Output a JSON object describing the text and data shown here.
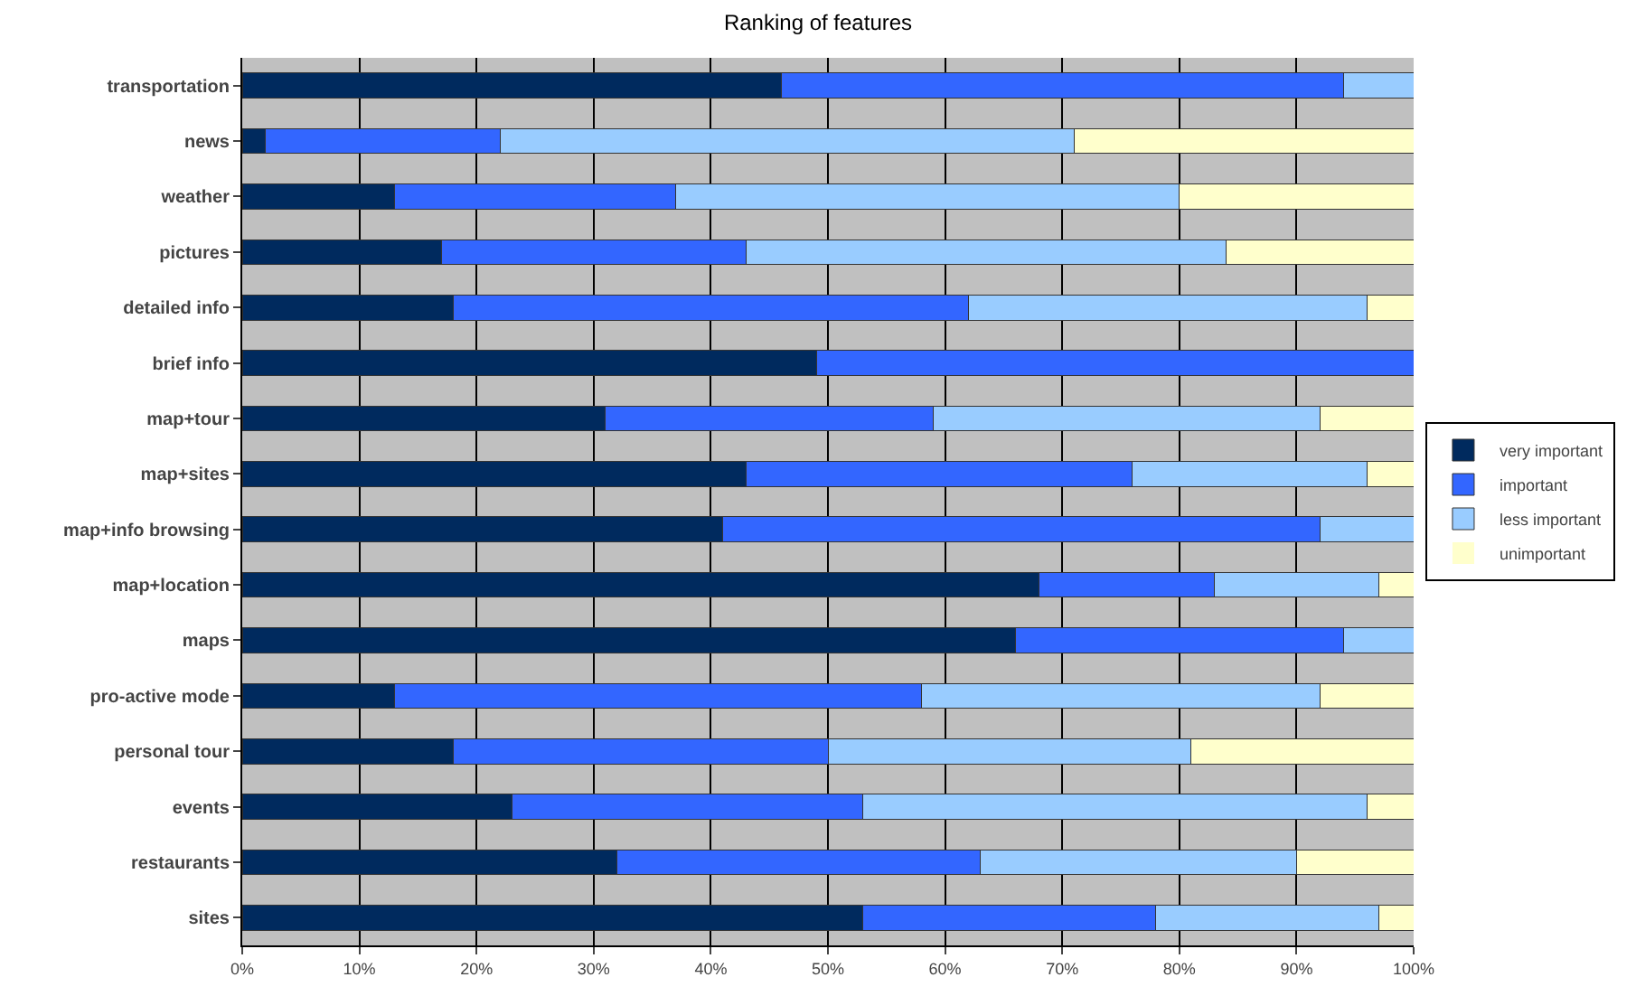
{
  "chart_data": {
    "type": "bar",
    "orientation": "horizontal",
    "stacked": true,
    "title": "Ranking of features",
    "categories": [
      "transportation",
      "news",
      "weather",
      "pictures",
      "detailed info",
      "brief info",
      "map+tour",
      "map+sites",
      "map+info browsing",
      "map+location",
      "maps",
      "pro-active mode",
      "personal tour",
      "events",
      "restaurants",
      "sites"
    ],
    "series": [
      {
        "name": "very important",
        "color": "#002a5e",
        "values": [
          46,
          2,
          13,
          17,
          18,
          49,
          31,
          43,
          41,
          68,
          66,
          13,
          18,
          23,
          32,
          53
        ]
      },
      {
        "name": "important",
        "color": "#3366ff",
        "values": [
          48,
          20,
          24,
          26,
          44,
          51,
          28,
          33,
          51,
          15,
          28,
          45,
          32,
          30,
          31,
          25
        ]
      },
      {
        "name": "less important",
        "color": "#99ccff",
        "values": [
          6,
          49,
          43,
          41,
          34,
          0,
          33,
          20,
          8,
          14,
          6,
          34,
          31,
          43,
          27,
          19
        ]
      },
      {
        "name": "unimportant",
        "color": "#ffffcc",
        "values": [
          0,
          29,
          20,
          16,
          4,
          0,
          8,
          4,
          0,
          3,
          0,
          8,
          19,
          4,
          10,
          3
        ]
      }
    ],
    "xlim": [
      0,
      100
    ],
    "xticks": [
      {
        "value": 0,
        "label": "0%"
      },
      {
        "value": 10,
        "label": "10%"
      },
      {
        "value": 20,
        "label": "20%"
      },
      {
        "value": 30,
        "label": "30%"
      },
      {
        "value": 40,
        "label": "40%"
      },
      {
        "value": 50,
        "label": "50%"
      },
      {
        "value": 60,
        "label": "60%"
      },
      {
        "value": 70,
        "label": "70%"
      },
      {
        "value": 80,
        "label": "80%"
      },
      {
        "value": 90,
        "label": "90%"
      },
      {
        "value": 100,
        "label": "100%"
      }
    ],
    "grid": "x",
    "legend": "right"
  }
}
